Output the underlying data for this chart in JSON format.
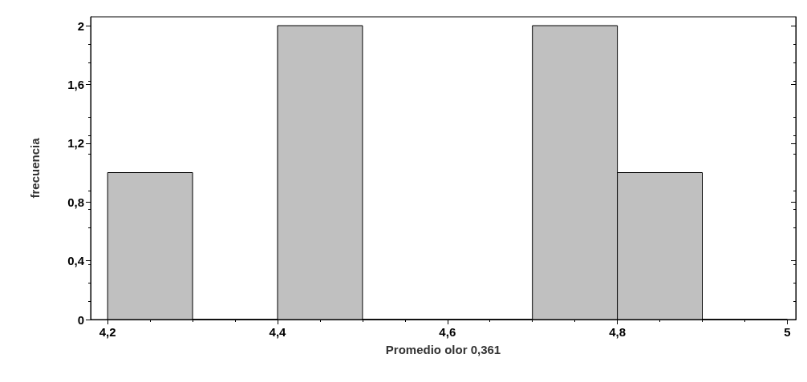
{
  "chart_data": {
    "type": "histogram",
    "xlabel": "Promedio olor 0,361",
    "ylabel": "frecuencia",
    "bins": [
      4.2,
      4.3,
      4.4,
      4.5,
      4.6,
      4.7,
      4.8,
      4.9,
      5.0
    ],
    "values": [
      1,
      0,
      2,
      0,
      0,
      2,
      1,
      0
    ],
    "color": "#c0c0c0",
    "xlim": [
      4.18,
      5.01
    ],
    "ylim": [
      0,
      2.06
    ],
    "xticks": [
      {
        "value": 4.2,
        "label": "4,2"
      },
      {
        "value": 4.4,
        "label": "4,4"
      },
      {
        "value": 4.6,
        "label": "4,6"
      },
      {
        "value": 4.8,
        "label": "4,8"
      },
      5
    ],
    "yticks": [
      0,
      {
        "value": 0.4,
        "label": "0,4"
      },
      {
        "value": 0.8,
        "label": "0,8"
      },
      {
        "value": 1.2,
        "label": "1,2"
      },
      {
        "value": 1.6,
        "label": "1,6"
      },
      2
    ],
    "grid": false
  }
}
